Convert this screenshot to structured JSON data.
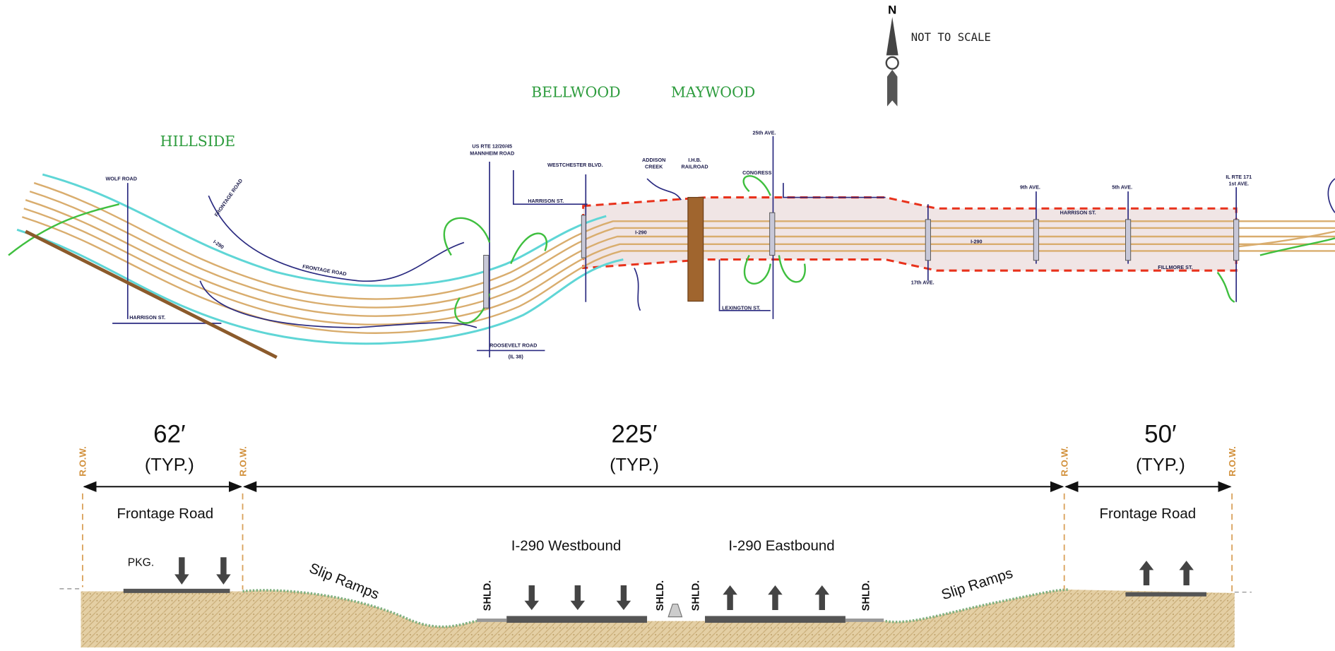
{
  "map": {
    "north": "N",
    "scale_note": "NOT TO SCALE",
    "towns": [
      "HILLSIDE",
      "BELLWOOD",
      "MAYWOOD"
    ],
    "labels": [
      "WOLF ROAD",
      "FRONTAGE ROAD",
      "I-290",
      "FRONTAGE ROAD",
      "HARRISON ST.",
      "US RTE 12/20/45",
      "MANNHEIM ROAD",
      "ROOSEVELT ROAD",
      "(IL 38)",
      "WESTCHESTER BLVD.",
      "HARRISON ST.",
      "ADDISON",
      "CREEK",
      "I.H.B.",
      "RAILROAD",
      "CONGRESS",
      "25th AVE.",
      "I-290",
      "LEXINGTON ST.",
      "17th AVE.",
      "I-290",
      "9th AVE.",
      "5th AVE.",
      "IL RTE 171",
      "1st AVE.",
      "HARRISON ST.",
      "FILLMORE ST."
    ]
  },
  "cross_section": {
    "widths": [
      {
        "dimension": "62′",
        "note": "(TYP.)"
      },
      {
        "dimension": "225′",
        "note": "(TYP.)"
      },
      {
        "dimension": "50′",
        "note": "(TYP.)"
      }
    ],
    "row_labels": [
      "R.O.W.",
      "R.O.W.",
      "R.O.W.",
      "R.O.W."
    ],
    "labels": [
      "Frontage Road",
      "PKG.",
      "Slip Ramps",
      "I-290 Westbound",
      "I-290 Eastbound",
      "Slip Ramps",
      "Frontage Road"
    ],
    "shoulders": [
      "SHLD.",
      "SHLD.",
      "SHLD.",
      "SHLD."
    ]
  }
}
